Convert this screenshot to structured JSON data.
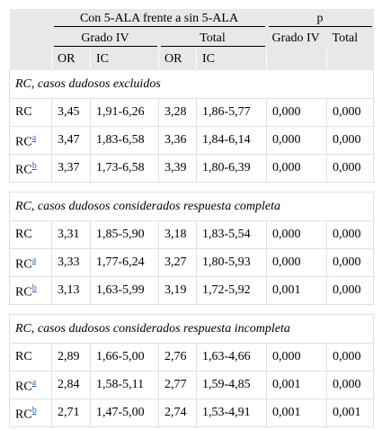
{
  "header": {
    "group1": "Con 5-ALA frente a sin 5-ALA",
    "group2": "p",
    "sub": [
      "Grado IV",
      "Total",
      "Grado IV",
      "Total"
    ],
    "cols": [
      "OR",
      "IC",
      "OR",
      "IC"
    ]
  },
  "sections": [
    {
      "title": "RC, casos dudosos excluidos",
      "rows": [
        {
          "label": "RC",
          "cells": [
            "3,45",
            "1,91-6,26",
            "3,28",
            "1,86-5,77",
            "0,000",
            "0,000"
          ]
        },
        {
          "label": "RC",
          "sup": "a",
          "cells": [
            "3,47",
            "1,83-6,58",
            "3,36",
            "1,84-6,14",
            "0,000",
            "0,000"
          ]
        },
        {
          "label": "RC",
          "sup": "b",
          "cells": [
            "3,37",
            "1,73-6,58",
            "3,39",
            "1,80-6,39",
            "0,000",
            "0,000"
          ]
        }
      ]
    },
    {
      "title": "RC, casos dudosos considerados respuesta completa",
      "rows": [
        {
          "label": "RC",
          "cells": [
            "3,31",
            "1,85-5,90",
            "3,18",
            "1,83-5,54",
            "0,000",
            "0,000"
          ]
        },
        {
          "label": "RC",
          "sup": "a",
          "cells": [
            "3,33",
            "1,77-6,24",
            "3,27",
            "1,80-5,93",
            "0,000",
            "0,000"
          ]
        },
        {
          "label": "RC",
          "sup": "b",
          "cells": [
            "3,13",
            "1,63-5,99",
            "3,19",
            "1,72-5,92",
            "0,001",
            "0,000"
          ]
        }
      ]
    },
    {
      "title": "RC, casos dudosos considerados respuesta incompleta",
      "rows": [
        {
          "label": "RC",
          "cells": [
            "2,89",
            "1,66-5,00",
            "2,76",
            "1,63-4,66",
            "0,000",
            "0,000"
          ]
        },
        {
          "label": "RC",
          "sup": "a",
          "cells": [
            "2,84",
            "1,58-5,11",
            "2,77",
            "1,59-4,85",
            "0,001",
            "0,000"
          ]
        },
        {
          "label": "RC",
          "sup": "b",
          "cells": [
            "2,71",
            "1,47-5,00",
            "2,74",
            "1,53-4,91",
            "0,001",
            "0,001"
          ]
        }
      ]
    }
  ]
}
